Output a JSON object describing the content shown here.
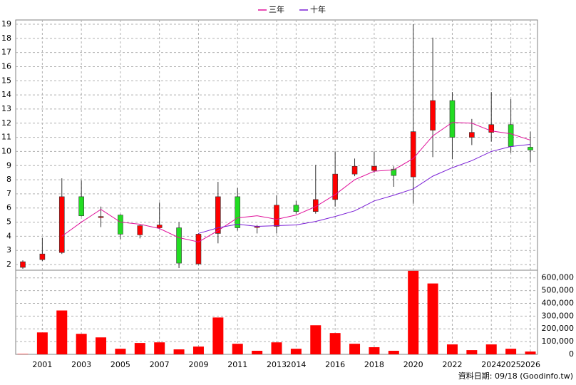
{
  "chart_data": [
    {
      "type": "candlestick",
      "categories": [
        null,
        "2001",
        null,
        "2003",
        null,
        "2005",
        null,
        "2007",
        null,
        "2009",
        null,
        "2011",
        null,
        "2013",
        "2014",
        null,
        "2016",
        null,
        "2018",
        null,
        "2020",
        null,
        "2022",
        null,
        "2024",
        "2025",
        "2026"
      ],
      "open": [
        1.8,
        2.35,
        2.85,
        6.8,
        5.4,
        5.5,
        4.1,
        4.6,
        4.6,
        2.05,
        4.2,
        6.8,
        4.65,
        4.7,
        6.2,
        5.75,
        6.6,
        8.4,
        8.65,
        8.75,
        8.2,
        11.5,
        13.6,
        11.0,
        11.35,
        11.9,
        10.3
      ],
      "high": [
        2.3,
        3.9,
        8.1,
        7.95,
        6.1,
        5.55,
        4.8,
        6.4,
        5.0,
        4.2,
        7.85,
        7.4,
        4.8,
        6.9,
        6.5,
        9.05,
        10.0,
        9.5,
        10.0,
        8.95,
        19.0,
        18.05,
        14.2,
        12.3,
        14.2,
        13.7,
        11.4
      ],
      "low": [
        1.7,
        2.25,
        2.75,
        5.4,
        4.65,
        3.8,
        3.85,
        4.5,
        1.75,
        2.0,
        3.5,
        4.4,
        4.2,
        4.2,
        5.6,
        5.6,
        6.1,
        8.25,
        8.5,
        7.5,
        6.3,
        9.6,
        9.45,
        10.45,
        10.7,
        9.9,
        9.25
      ],
      "close": [
        2.2,
        2.75,
        6.8,
        5.45,
        5.4,
        4.15,
        4.75,
        4.8,
        2.1,
        4.15,
        6.8,
        4.6,
        4.7,
        6.2,
        5.75,
        6.6,
        8.4,
        8.95,
        8.95,
        8.3,
        11.4,
        13.6,
        11.0,
        11.35,
        11.9,
        10.35,
        10.1
      ],
      "up_color": "#ff0000",
      "down_color": "#22dd22",
      "series": [
        {
          "name": "三年",
          "color": "#e0109a",
          "values": [
            null,
            null,
            4.0,
            5.0,
            5.9,
            5.0,
            4.85,
            4.55,
            3.9,
            3.6,
            4.4,
            5.3,
            5.45,
            5.2,
            5.5,
            6.1,
            6.95,
            8.0,
            8.6,
            8.7,
            9.5,
            11.1,
            12.05,
            12.0,
            11.45,
            11.25,
            10.8
          ]
        },
        {
          "name": "十年",
          "color": "#7a1fd6",
          "values": [
            null,
            null,
            null,
            null,
            null,
            null,
            null,
            null,
            null,
            4.2,
            4.6,
            4.85,
            4.7,
            4.75,
            4.8,
            5.05,
            5.4,
            5.8,
            6.5,
            6.9,
            7.35,
            8.25,
            8.85,
            9.35,
            10.0,
            10.35,
            10.5
          ]
        }
      ],
      "ylim": [
        1.6,
        19.3
      ],
      "yticks": [
        2,
        3,
        4,
        5,
        6,
        7,
        8,
        9,
        10,
        11,
        12,
        13,
        14,
        15,
        16,
        17,
        18,
        19
      ],
      "grid": true
    },
    {
      "type": "bar",
      "color": "#ff0000",
      "values": [
        3000,
        172000,
        344000,
        161000,
        133000,
        44000,
        89000,
        94000,
        39000,
        61000,
        289000,
        83000,
        28000,
        94000,
        44000,
        228000,
        167000,
        83000,
        56000,
        28000,
        655000,
        556000,
        78000,
        33000,
        78000,
        44000,
        22000
      ],
      "ylim": [
        0,
        660000
      ],
      "yticks": [
        0,
        {
          "value": 100000,
          "label": "100,000"
        },
        {
          "value": 200000,
          "label": "200,000"
        },
        {
          "value": 300000,
          "label": "300,000"
        },
        {
          "value": 400000,
          "label": "400,000"
        },
        {
          "value": 500000,
          "label": "500,000"
        },
        {
          "value": 600000,
          "label": "600,000"
        }
      ],
      "grid": true
    }
  ],
  "footer": "資料日期: 09/18 (Goodinfo.tw)"
}
